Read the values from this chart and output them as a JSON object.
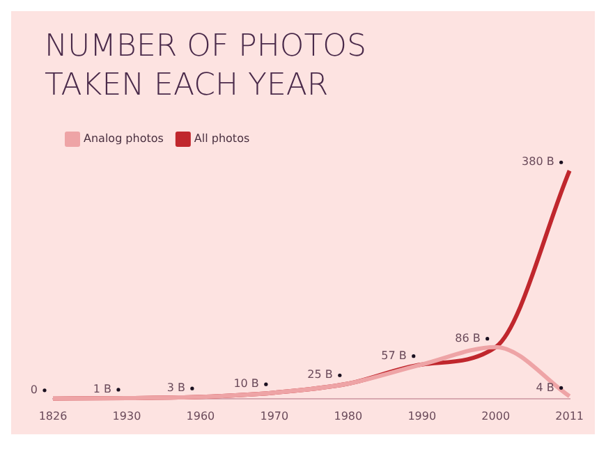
{
  "chart_data": {
    "type": "line",
    "title": "NUMBER OF PHOTOS TAKEN EACH YEAR",
    "categories": [
      "1826",
      "1930",
      "1960",
      "1970",
      "1980",
      "1990",
      "2000",
      "2011"
    ],
    "series": [
      {
        "name": "All photos",
        "color": "#c0272d",
        "values": [
          0,
          1,
          3,
          10,
          25,
          57,
          86,
          380
        ],
        "value_labels": [
          "0",
          "1 B",
          "3 B",
          "10 B",
          "25 B",
          "57 B",
          "86 B",
          "380 B"
        ]
      },
      {
        "name": "Analog photos",
        "color": "#eea4a6",
        "values": [
          0,
          1,
          3,
          10,
          25,
          57,
          86,
          4
        ],
        "value_labels": [
          null,
          null,
          null,
          null,
          null,
          null,
          null,
          "4 B"
        ]
      }
    ],
    "legend": "top left",
    "grid": false,
    "tick_labels": "x",
    "marker": "none"
  }
}
